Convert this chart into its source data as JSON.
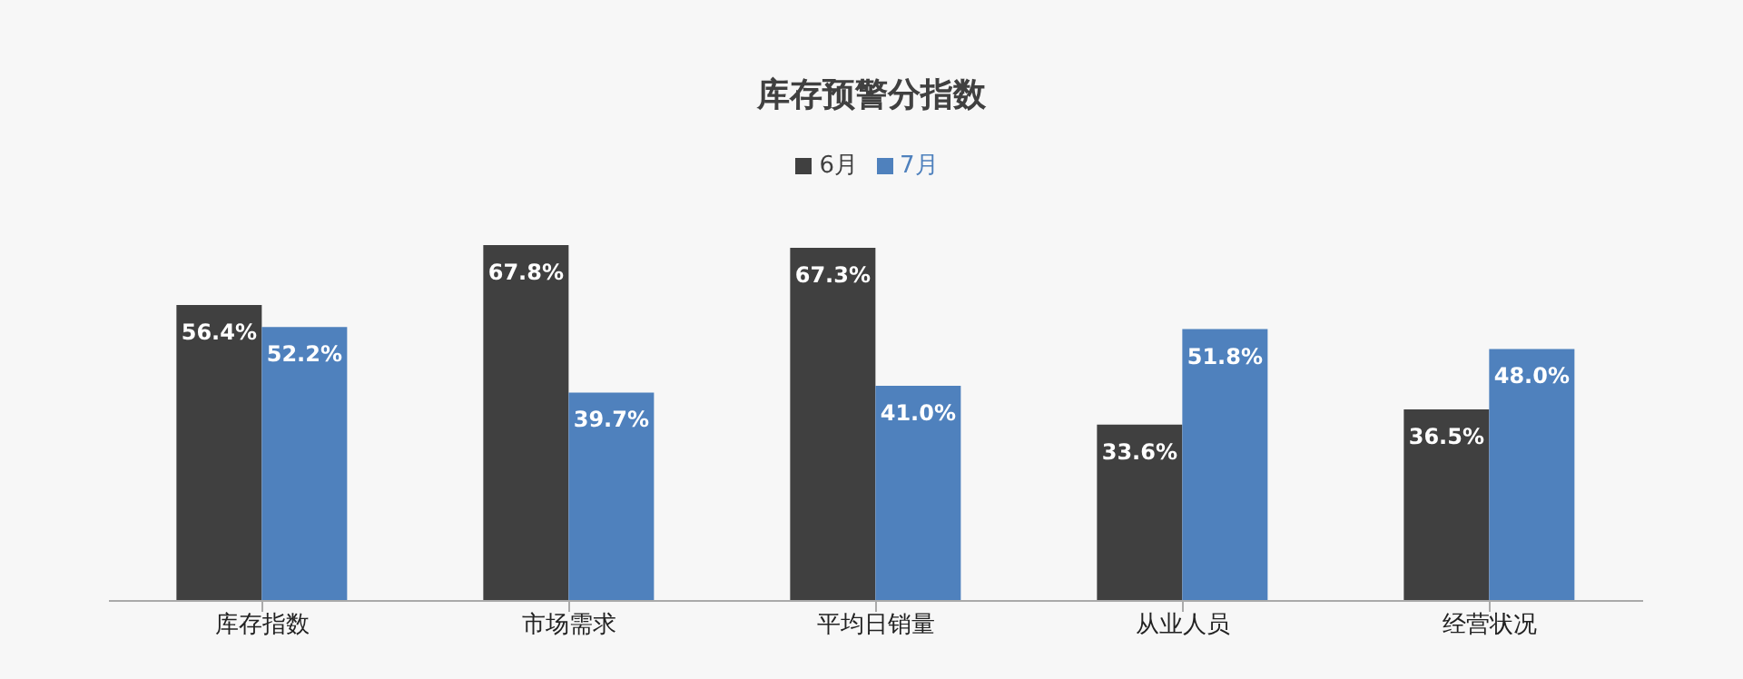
{
  "chart_data": {
    "type": "bar",
    "title": "库存预警分指数",
    "categories": [
      "库存指数",
      "市场需求",
      "平均日销量",
      "从业人员",
      "经营状况"
    ],
    "series": [
      {
        "name": "6月",
        "color": "#404040",
        "values": [
          56.4,
          67.8,
          67.3,
          33.6,
          36.5
        ],
        "value_labels": [
          "56.4%",
          "67.8%",
          "67.3%",
          "33.6%",
          "36.5%"
        ]
      },
      {
        "name": "7月",
        "color": "#4f81bd",
        "values": [
          52.2,
          39.7,
          41.0,
          51.8,
          48.0
        ],
        "value_labels": [
          "52.2%",
          "39.7%",
          "41.0%",
          "51.8%",
          "48.0%"
        ]
      }
    ],
    "legend": "top",
    "grid": false
  }
}
